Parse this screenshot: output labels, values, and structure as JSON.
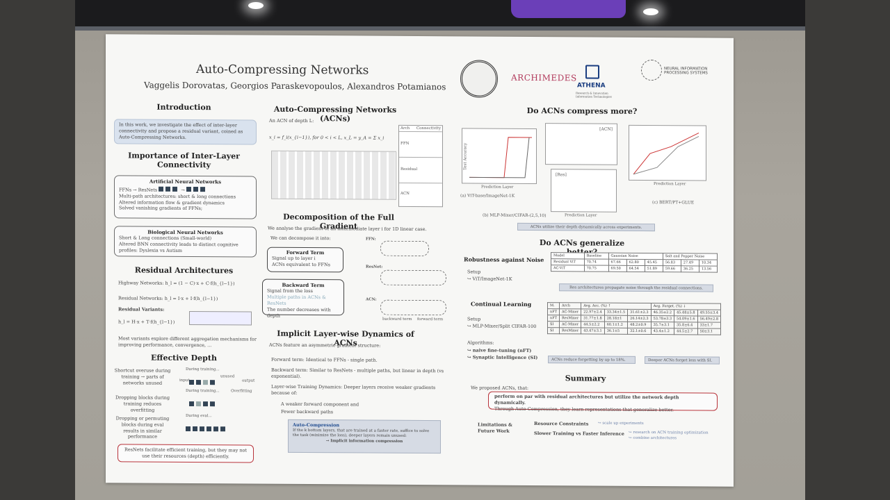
{
  "poster": {
    "title": "Auto-Compressing Networks",
    "authors": "Vaggelis Dorovatas, Georgios Paraskevopoulos, Alexandros Potamianos",
    "logos": {
      "archimedes": "ARCHIMEDES",
      "athena": "ATHENA",
      "athena_sub": "Research & Innovation Information Technologies",
      "neurips": "NEURAL INFORMATION PROCESSING SYSTEMS"
    },
    "left": {
      "intro_heading": "Introduction",
      "intro_text": "In this work, we investigate the effect of inter-layer connectivity and propose a residual variant, coined as Auto-Compressing Networks.",
      "importance_heading": "Importance of Inter-Layer Connectivity",
      "ann_heading": "Artificial Neural Networks",
      "ann_flow": "FFNs → ResNets",
      "ann_bullets": [
        "Multi-path architectures: short & long connections",
        "Altered information flow & gradient dynamics",
        "Solved vanishing gradients of FFNs;"
      ],
      "bnn_heading": "Biological Neural Networks",
      "bnn_bullets": [
        "Short & Long connections (Small-world)",
        "Altered BNN connectivity leads to distinct cognitive profiles: Dyslexia vs Autism"
      ],
      "residual_heading": "Residual Architectures",
      "residual_items": [
        "Highway Networks: h_l = (1 − C)·x + C·f(h_{l−1})",
        "Residual Networks: h_l = I·x + I·f(h_{l−1})",
        "Residual Variants:",
        "h_l = H·x + T·f(h_{l−1})"
      ],
      "variants_note": "Most variants explore different aggregation mechanisms for improving performance, convergence, ...",
      "effective_heading": "Effective Depth",
      "effective_items": [
        "Shortcut overuse during training → parts of networks unused",
        "Dropping blocks during training reduces overfitting",
        "Dropping or permuting blocks during eval results in similar performance"
      ],
      "effective_labels": [
        "During training...",
        "unused",
        "During training...",
        "Overfitting",
        "During eval...",
        "input",
        "output"
      ],
      "resnet_note": "ResNets facilitate efficient training, but they may not use their resources (depth) efficiently."
    },
    "middle": {
      "acn_heading": "Auto-Compressing Networks (ACNs)",
      "acn_def": "An ACN of depth L:",
      "acn_eq": "x_i = f_i(x_{i−1}),  for 0 < i < L,    x_L = y_A = Σ x_i",
      "conn_table_headers": [
        "Arch",
        "Connectivity"
      ],
      "conn_table_rows": [
        "FFN",
        "Residual",
        "ACN"
      ],
      "grad_heading": "Decomposition of the Full Gradient",
      "grad_intro": "We analyse the gradient of an intermediate layer i for 1D linear case.",
      "grad_decomp": "We can decompose it into:",
      "forward_term": "Forward Term",
      "forward_items": [
        "Signal up to layer i",
        "ACNs equivalent to FFNs"
      ],
      "backward_term": "Backward Term",
      "backward_items": [
        "Signal from the loss",
        "Multiple paths in ACNs & ResNets",
        "The number decreases with depth"
      ],
      "grad_labels": [
        "FFN:",
        "ResNet:",
        "ACN:",
        "backward term",
        "forward term"
      ],
      "implicit_heading": "Implicit Layer-wise Dynamics of ACNs",
      "implicit_intro": "ACNs feature an asymmetric gradient structure:",
      "implicit_items": [
        "Forward term: Identical to FFNs - single path.",
        "Backward term: Similar to ResNets - multiple paths, but linear in depth (vs exponential).",
        "Layer-wise Training Dynamics: Deeper layers receive weaker gradients because of:"
      ],
      "implicit_sub": [
        "A weaker forward component and",
        "Fewer backward paths"
      ],
      "ac_box_title": "Auto-Compression",
      "ac_box_text": "If the k bottom layers, that are trained at a faster rate, suffice to solve the task (minimize the loss), deeper layers remain unused:",
      "ac_box_result": "→ Implicit information compression"
    },
    "right": {
      "compress_heading": "Do ACNs compress more?",
      "plot_captions": [
        "(a) ViT-base/ImageNet-1K",
        "(b) MLP-Mixer/CIFAR-(2,5,10)",
        "(c) BERT/PT+GLUE"
      ],
      "plot_axis_labels": [
        "Prediction Layer",
        "Test Accuracy",
        "Prediction Layer",
        "Prediction Layer"
      ],
      "plot_tags": [
        "[ACN]",
        "[Res]"
      ],
      "compress_note": "ACNs utilize their depth dynamically across experiments.",
      "generalize_heading": "Do ACNs generalize better?",
      "robustness_heading": "Robustness against Noise",
      "robustness_items": [
        "Setup",
        "↪ ViT/ImageNet-1K"
      ],
      "noise_headers": [
        "Model",
        "Baseline",
        "Gaussian Noise",
        "Salt and Pepper Noise"
      ],
      "noise_rows": [
        [
          "Residual ViT",
          "70.74",
          "67.66",
          "62.80",
          "45.45",
          "56.83",
          "27.49",
          "10.34"
        ],
        [
          "AC-ViT",
          "70.75",
          "69.50",
          "64.54",
          "51.89",
          "59.66",
          "36.25",
          "13.56"
        ]
      ],
      "noise_note": "Res architectures propagate noise through the residual connections.",
      "continual_heading": "Continual Learning",
      "continual_items": [
        "Setup",
        "↪ MLP-Mixer/Split CIFAR-100",
        "Algorithms:",
        "↪ naive fine-tuning (nFT)",
        "↪ Synaptic Intelligence (SI)"
      ],
      "cl_headers": [
        "M.",
        "Arch",
        "Avg. Acc. (%) ↑",
        "Avg. Forget. (%) ↓"
      ],
      "cl_rows": [
        [
          "nFT",
          "AC-Mixer",
          "22.97±2.4",
          "33.34±1.5",
          "31.61±2.3",
          "46.35±2.2",
          "45.48±5.8",
          "49.55±3.4"
        ],
        [
          "nFT",
          "ResMixer",
          "31.77±1.8",
          "28.18±1",
          "26.14±2.3",
          "53.78±3.3",
          "54.09±1.6",
          "56.49±2.8"
        ],
        [
          "SI",
          "AC-Mixer",
          "44.5±2.2",
          "60.1±1.2",
          "48.2±0.9",
          "35.7±3.1",
          "35.8±6.4",
          "33±1.7"
        ],
        [
          "SI",
          "ResMixer",
          "43.47±3.1",
          "36.1±5",
          "32.1±0.6",
          "43.4±1.2",
          "44.5±2.7",
          "50±3.1"
        ]
      ],
      "cl_note_left": "ACNs reduce forgetting by up to 18%.",
      "cl_note_right": "Deeper ACNs forget less with SI.",
      "summary_heading": "Summary",
      "summary_intro": "We proposed ACNs, that:",
      "summary_items": [
        "perform on par with residual architectures but utilize the network depth dynamically.",
        "Through Auto-Compression, they learn representations that generalize better."
      ],
      "limits_heading": "Limitations & Future Work",
      "limits_items": [
        "Resource Constraints",
        "Slower Training vs Faster Inference"
      ],
      "limits_notes": [
        "↪ scale up experiments",
        "↪ research on ACN training optimization",
        "↪ combine architectures"
      ]
    }
  }
}
